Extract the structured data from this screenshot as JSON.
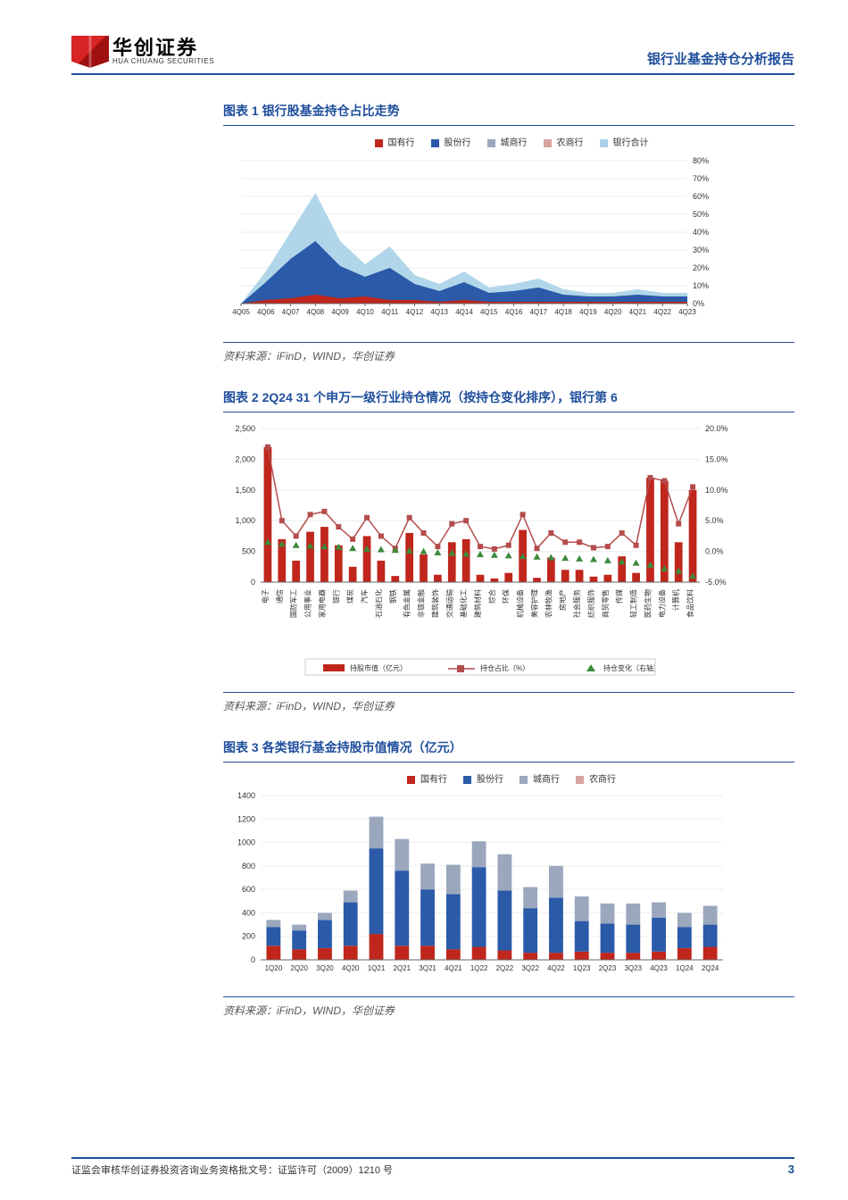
{
  "header": {
    "logo_cn": "华创证券",
    "logo_en": "HUA CHUANG SECURITIES",
    "doc_title": "银行业基金持仓分析报告"
  },
  "footer": {
    "approval": "证监会审核华创证券投资咨询业务资格批文号：证监许可（2009）1210 号",
    "page": "3"
  },
  "source_line": "资料来源：iFinD，WIND，华创证券",
  "colors": {
    "state": "#c0261c",
    "joint": "#2a5aa8",
    "city": "#9aa7bd",
    "rural": "#d9a3a0",
    "total": "#a9d1e8",
    "axis": "#666666",
    "marker_tri": "#3c8a3c",
    "marker_sq": "#b44c4c",
    "line": "#b44c4c"
  },
  "fig1": {
    "title": "图表 1   银行股基金持仓占比走势",
    "legend": [
      "国有行",
      "股份行",
      "城商行",
      "农商行",
      "银行合计"
    ],
    "x": [
      "4Q05",
      "4Q06",
      "4Q07",
      "4Q08",
      "4Q09",
      "4Q10",
      "4Q11",
      "4Q12",
      "4Q13",
      "4Q14",
      "4Q15",
      "4Q16",
      "4Q17",
      "4Q18",
      "4Q19",
      "4Q20",
      "4Q21",
      "4Q22",
      "4Q23"
    ],
    "yticks": [
      "0%",
      "10%",
      "20%",
      "30%",
      "40%",
      "50%",
      "60%",
      "70%",
      "80%"
    ],
    "ymax": 80,
    "series": {
      "state": [
        0,
        2,
        3,
        5,
        3,
        4,
        2,
        2,
        1,
        2,
        1,
        1,
        1,
        1,
        1,
        1,
        1,
        1,
        1
      ],
      "joint": [
        0,
        10,
        22,
        30,
        18,
        11,
        18,
        9,
        6,
        10,
        5,
        6,
        8,
        4,
        3,
        3,
        4,
        3,
        3
      ],
      "city": [
        0,
        0,
        0,
        2,
        1,
        1,
        1,
        1,
        1,
        1,
        1,
        1,
        1,
        1,
        1,
        1,
        1,
        1,
        1
      ],
      "rural": [
        0,
        0,
        0,
        0,
        0,
        0,
        0,
        0,
        0,
        0,
        0,
        0,
        0,
        0,
        0,
        0,
        0,
        0,
        0
      ],
      "total": [
        0,
        18,
        40,
        62,
        35,
        22,
        32,
        16,
        11,
        18,
        9,
        11,
        14,
        8,
        6,
        6,
        8,
        6,
        6
      ]
    }
  },
  "fig2": {
    "title": "图表 2   2Q24 31 个申万一级行业持仓情况（按持仓变化排序），银行第 6",
    "categories": [
      "电子",
      "通信",
      "国防军工",
      "公用事业",
      "家用电器",
      "银行",
      "煤炭",
      "汽车",
      "石油石化",
      "钢铁",
      "有色金属",
      "非银金融",
      "建筑装饰",
      "交通运输",
      "基础化工",
      "建筑材料",
      "综合",
      "环保",
      "机械设备",
      "美容护理",
      "农林牧渔",
      "房地产",
      "社会服务",
      "纺织服饰",
      "商贸零售",
      "传媒",
      "轻工制造",
      "医药生物",
      "电力设备",
      "计算机",
      "食品饮料"
    ],
    "bars": [
      2200,
      700,
      350,
      820,
      900,
      600,
      250,
      750,
      350,
      100,
      800,
      450,
      120,
      650,
      700,
      120,
      60,
      150,
      850,
      70,
      400,
      200,
      200,
      90,
      120,
      420,
      150,
      1700,
      1650,
      650,
      1500
    ],
    "line_pct": [
      17,
      5,
      2.5,
      6,
      6.5,
      4,
      2,
      5.5,
      2.5,
      0.5,
      5.5,
      3,
      0.8,
      4.5,
      5,
      0.8,
      0.4,
      1,
      6,
      0.5,
      3,
      1.5,
      1.5,
      0.6,
      0.8,
      3,
      1,
      12,
      11.5,
      4.5,
      10.5
    ],
    "tri_pct": [
      1.5,
      1.2,
      1.0,
      0.9,
      0.8,
      0.7,
      0.5,
      0.4,
      0.3,
      0.2,
      0.1,
      0.0,
      -0.2,
      -0.3,
      -0.4,
      -0.5,
      -0.6,
      -0.7,
      -0.8,
      -0.9,
      -1.0,
      -1.1,
      -1.2,
      -1.3,
      -1.5,
      -1.7,
      -1.9,
      -2.2,
      -2.8,
      -3.2,
      -4.0
    ],
    "yL_ticks": [
      "0",
      "500",
      "1,000",
      "1,500",
      "2,000",
      "2,500"
    ],
    "yL_max": 2500,
    "yR_ticks": [
      "-5.0%",
      "0.0%",
      "5.0%",
      "10.0%",
      "15.0%",
      "20.0%"
    ],
    "yR_min": -5,
    "yR_max": 20,
    "legend": {
      "bar": "持股市值（亿元）",
      "line": "持仓占比（%）",
      "tri": "持仓变化（右轴）"
    }
  },
  "fig3": {
    "title": "图表 3   各类银行基金持股市值情况（亿元）",
    "legend": [
      "国有行",
      "股份行",
      "城商行",
      "农商行"
    ],
    "x": [
      "1Q20",
      "2Q20",
      "3Q20",
      "4Q20",
      "1Q21",
      "2Q21",
      "3Q21",
      "4Q21",
      "1Q22",
      "2Q22",
      "3Q22",
      "4Q22",
      "1Q23",
      "2Q23",
      "3Q23",
      "4Q23",
      "1Q24",
      "2Q24"
    ],
    "yticks": [
      "0",
      "200",
      "400",
      "600",
      "800",
      "1000",
      "1200",
      "1400"
    ],
    "ymax": 1400,
    "bars": {
      "state": [
        120,
        90,
        100,
        120,
        220,
        120,
        120,
        90,
        110,
        80,
        60,
        60,
        70,
        60,
        60,
        70,
        100,
        110
      ],
      "joint": [
        160,
        160,
        240,
        370,
        730,
        640,
        480,
        470,
        680,
        510,
        380,
        470,
        260,
        250,
        240,
        290,
        180,
        190
      ],
      "city": [
        60,
        50,
        60,
        100,
        270,
        270,
        220,
        250,
        220,
        310,
        180,
        270,
        210,
        170,
        180,
        130,
        120,
        160
      ],
      "rural": [
        0,
        0,
        0,
        0,
        0,
        0,
        0,
        0,
        0,
        0,
        0,
        0,
        0,
        0,
        0,
        0,
        0,
        0
      ]
    }
  }
}
